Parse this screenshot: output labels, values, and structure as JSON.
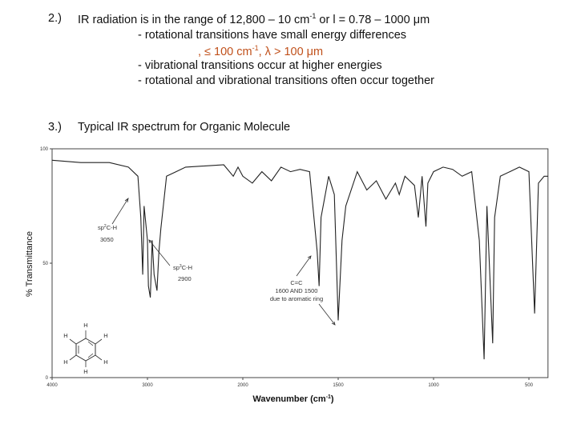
{
  "item1": {
    "number": "2.)",
    "parts": [
      "IR radiation is in the range of 12,800 – 10 cm",
      "-1",
      " or l = 0.78 – 1000 μm"
    ],
    "bullets": [
      "- rotational transitions have small energy differences",
      "- vibrational transitions occur at higher energies",
      "- rotational and vibrational transitions often occur together"
    ],
    "highlight": [
      ", ≤ 100 cm",
      "-1",
      ", λ > 100 μm"
    ]
  },
  "item2": {
    "number": "3.)",
    "text": "Typical IR spectrum for Organic Molecule"
  },
  "chart_data": {
    "type": "line",
    "ylabel": "% Transmittance",
    "xlabel": [
      "Wavenumber (cm",
      "-1",
      ")"
    ],
    "xlim": [
      4000,
      400
    ],
    "ylim": [
      0,
      100
    ],
    "xticks": [
      4000,
      3000,
      2000,
      1500,
      1000,
      500
    ],
    "yticks": [
      0,
      50,
      100
    ],
    "color": "#222",
    "x": [
      4000,
      3700,
      3400,
      3200,
      3100,
      3070,
      3050,
      3035,
      3000,
      2990,
      2970,
      2950,
      2930,
      2900,
      2880,
      2860,
      2800,
      2700,
      2600,
      2200,
      2100,
      2050,
      2000,
      1950,
      1900,
      1850,
      1800,
      1750,
      1700,
      1650,
      1610,
      1600,
      1590,
      1550,
      1520,
      1500,
      1480,
      1460,
      1400,
      1350,
      1300,
      1250,
      1200,
      1180,
      1150,
      1100,
      1080,
      1060,
      1040,
      1030,
      1000,
      950,
      900,
      850,
      800,
      760,
      735,
      720,
      700,
      690,
      680,
      650,
      600,
      550,
      500,
      470,
      450,
      420,
      400
    ],
    "values": [
      95,
      94,
      94,
      92,
      88,
      70,
      45,
      75,
      60,
      40,
      35,
      60,
      45,
      38,
      55,
      65,
      88,
      90,
      92,
      93,
      88,
      92,
      88,
      85,
      90,
      86,
      92,
      90,
      91,
      90,
      55,
      40,
      70,
      88,
      80,
      25,
      60,
      75,
      90,
      82,
      86,
      78,
      85,
      80,
      88,
      84,
      70,
      88,
      66,
      85,
      90,
      92,
      91,
      88,
      90,
      60,
      8,
      75,
      35,
      15,
      70,
      88,
      90,
      92,
      90,
      28,
      85,
      88,
      88
    ],
    "annotations": [
      {
        "lines": [
          "sp",
          "2",
          "C-H",
          "3050"
        ]
      },
      {
        "lines": [
          "sp",
          "3",
          "C-H",
          "2900"
        ]
      },
      {
        "lines": [
          "C=C",
          "1600 AND 1500",
          "due to aromatic ring"
        ]
      }
    ],
    "molecule_labels": [
      "H",
      "H",
      "H",
      "H",
      "H",
      "H"
    ]
  }
}
